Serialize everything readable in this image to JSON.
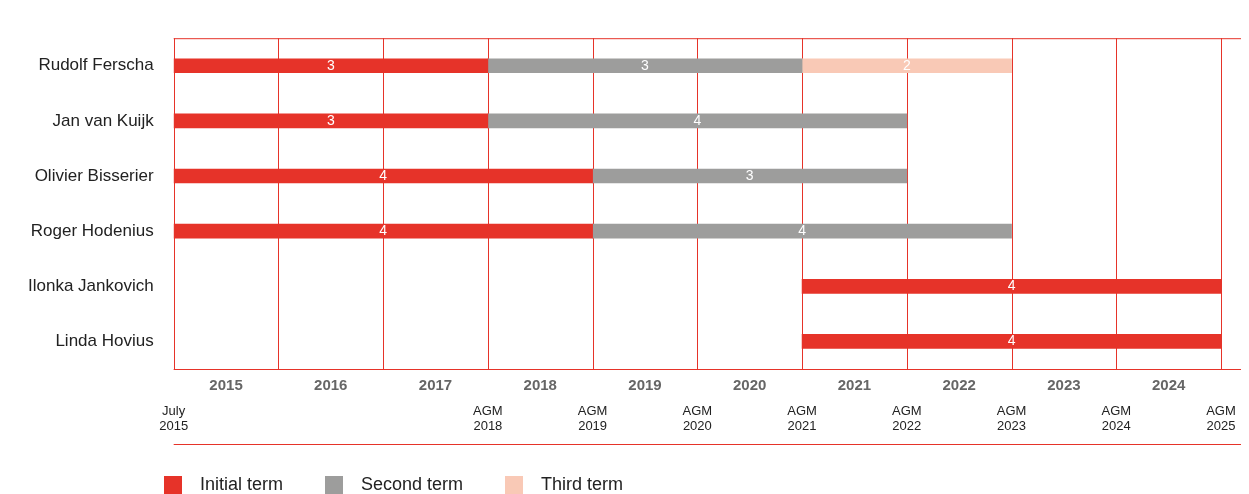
{
  "chart_data": {
    "type": "bar",
    "orientation": "horizontal",
    "categories": [
      "Rudolf Ferscha",
      "Jan van Kuijk",
      "Olivier Bisserier",
      "Roger Hodenius",
      "Ilonka Jankovich",
      "Linda Hovius"
    ],
    "series": [
      {
        "name": "Initial term",
        "color": "#e63329",
        "base": [
          2014.5,
          2014.5,
          2014.5,
          2014.5,
          2020.5,
          2020.5
        ],
        "values": [
          3,
          3,
          4,
          4,
          4,
          4
        ]
      },
      {
        "name": "Second term",
        "color": "#9d9d9c",
        "base": [
          2017.5,
          2017.5,
          2018.5,
          2018.5,
          null,
          null
        ],
        "values": [
          3,
          4,
          3,
          4,
          null,
          null
        ]
      },
      {
        "name": "Third term",
        "color": "#f9c9b6",
        "base": [
          2020.5,
          null,
          null,
          null,
          null,
          null
        ],
        "values": [
          2,
          null,
          null,
          null,
          null,
          null
        ]
      }
    ],
    "xlim": [
      2014.5,
      2024.5
    ],
    "xticks": [
      2015,
      2016,
      2017,
      2018,
      2019,
      2020,
      2021,
      2022,
      2023,
      2024
    ],
    "ref_lines": [
      {
        "axis": "x",
        "value": 2014.5,
        "label": "July 2015",
        "color": "#e63329"
      },
      {
        "axis": "x",
        "value": 2015.5,
        "color": "#e63329"
      },
      {
        "axis": "x",
        "value": 2016.5,
        "color": "#e63329"
      },
      {
        "axis": "x",
        "value": 2017.5,
        "label": "AGM 2018",
        "color": "#e63329"
      },
      {
        "axis": "x",
        "value": 2018.5,
        "label": "AGM 2019",
        "color": "#e63329"
      },
      {
        "axis": "x",
        "value": 2019.5,
        "label": "AGM 2020",
        "color": "#e63329"
      },
      {
        "axis": "x",
        "value": 2020.5,
        "label": "AGM 2021",
        "color": "#e63329"
      },
      {
        "axis": "x",
        "value": 2021.5,
        "label": "AGM 2022",
        "color": "#e63329"
      },
      {
        "axis": "x",
        "value": 2022.5,
        "label": "AGM 2023",
        "color": "#e63329"
      },
      {
        "axis": "x",
        "value": 2023.5,
        "label": "AGM 2024",
        "color": "#e63329"
      },
      {
        "axis": "x",
        "value": 2024.5,
        "label": "AGM 2025",
        "color": "#e63329"
      }
    ],
    "data_labels": true,
    "legend": "bottom left"
  }
}
